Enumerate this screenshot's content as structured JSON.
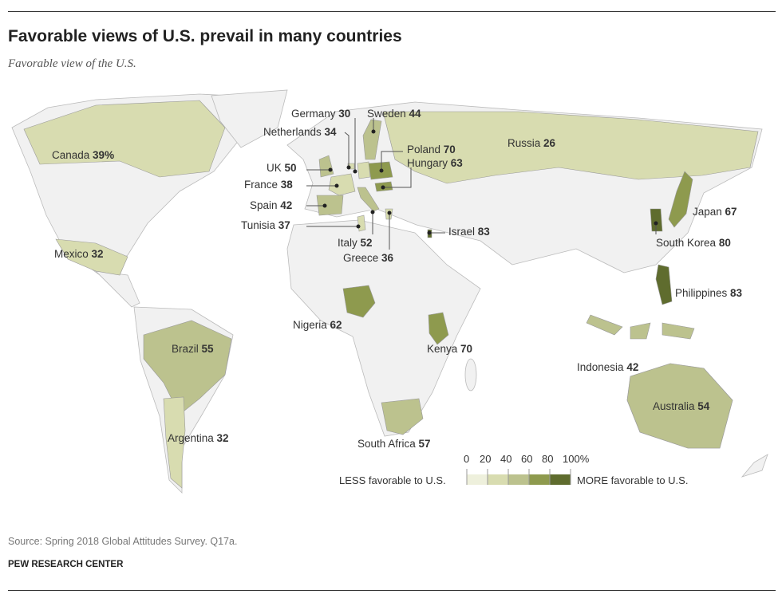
{
  "title": "Favorable views of U.S. prevail in many countries",
  "subtitle": "Favorable view of the U.S.",
  "countries": [
    {
      "name": "Canada",
      "value": "39%"
    },
    {
      "name": "Mexico",
      "value": "32"
    },
    {
      "name": "Brazil",
      "value": "55"
    },
    {
      "name": "Argentina",
      "value": "32"
    },
    {
      "name": "Germany",
      "value": "30"
    },
    {
      "name": "Sweden",
      "value": "44"
    },
    {
      "name": "Netherlands",
      "value": "34"
    },
    {
      "name": "Poland",
      "value": "70"
    },
    {
      "name": "Hungary",
      "value": "63"
    },
    {
      "name": "UK",
      "value": "50"
    },
    {
      "name": "France",
      "value": "38"
    },
    {
      "name": "Spain",
      "value": "42"
    },
    {
      "name": "Tunisia",
      "value": "37"
    },
    {
      "name": "Italy",
      "value": "52"
    },
    {
      "name": "Greece",
      "value": "36"
    },
    {
      "name": "Israel",
      "value": "83"
    },
    {
      "name": "Russia",
      "value": "26"
    },
    {
      "name": "Japan",
      "value": "67"
    },
    {
      "name": "South Korea",
      "value": "80"
    },
    {
      "name": "Philippines",
      "value": "83"
    },
    {
      "name": "Nigeria",
      "value": "62"
    },
    {
      "name": "Kenya",
      "value": "70"
    },
    {
      "name": "Indonesia",
      "value": "42"
    },
    {
      "name": "Australia",
      "value": "54"
    },
    {
      "name": "South Africa",
      "value": "57"
    }
  ],
  "legend": {
    "ticks": [
      "0",
      "20",
      "40",
      "60",
      "80",
      "100%"
    ],
    "less_label": "LESS favorable to U.S.",
    "more_label": "MORE favorable to U.S.",
    "colors": [
      "#eef0dc",
      "#d8dcb0",
      "#bcc28e",
      "#8e9a4e",
      "#5f6c2e"
    ]
  },
  "source": "Source: Spring 2018 Global Attitudes Survey. Q17a.",
  "org": "PEW RESEARCH CENTER"
}
